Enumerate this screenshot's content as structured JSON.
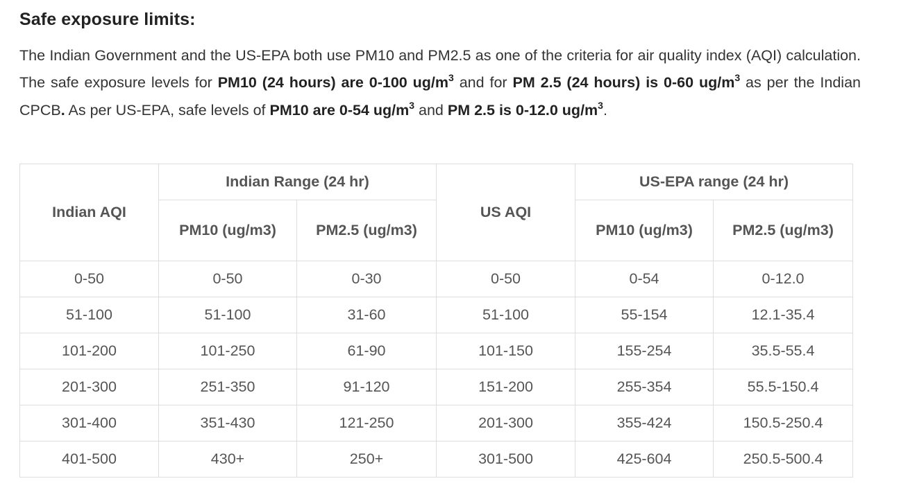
{
  "section": {
    "title": "Safe exposure limits:"
  },
  "intro": {
    "p1": "The Indian Government and the US-EPA both use PM10 and PM2.5 as one of the criteria for air quality index (AQI) calculation. The safe exposure levels for ",
    "b1": "PM10 (24 hours) are 0-100 ug/m",
    "sup1": "3",
    "p2": " and for ",
    "b2": "PM 2.5 (24 hours) is 0-60 ug/m",
    "sup2": "3",
    "p3": " as per the Indian CPCB",
    "b3": ".",
    "p4": " As per US-EPA, safe levels of ",
    "b4": "PM10 are 0-54 ug/m",
    "sup4": "3",
    "p5": " and ",
    "b5": "PM 2.5 is 0-12.0 ug/m",
    "sup5": "3",
    "p6": "."
  },
  "table": {
    "headers": {
      "indian_aqi": "Indian AQI",
      "indian_range": "Indian Range (24 hr)",
      "us_aqi": "US AQI",
      "us_range": "US-EPA range (24 hr)",
      "in_pm10": "PM10 (ug/m3)",
      "in_pm25": "PM2.5 (ug/m3)",
      "us_pm10": "PM10 (ug/m3)",
      "us_pm25": "PM2.5 (ug/m3)"
    },
    "rows": [
      [
        "0-50",
        "0-50",
        "0-30",
        "0-50",
        "0-54",
        "0-12.0"
      ],
      [
        "51-100",
        "51-100",
        "31-60",
        "51-100",
        "55-154",
        "12.1-35.4"
      ],
      [
        "101-200",
        "101-250",
        "61-90",
        "101-150",
        "155-254",
        "35.5-55.4"
      ],
      [
        "201-300",
        "251-350",
        "91-120",
        "151-200",
        "255-354",
        "55.5-150.4"
      ],
      [
        "301-400",
        "351-430",
        "121-250",
        "201-300",
        "355-424",
        "150.5-250.4"
      ],
      [
        "401-500",
        "430+",
        "250+",
        "301-500",
        "425-604",
        "250.5-500.4"
      ]
    ]
  }
}
